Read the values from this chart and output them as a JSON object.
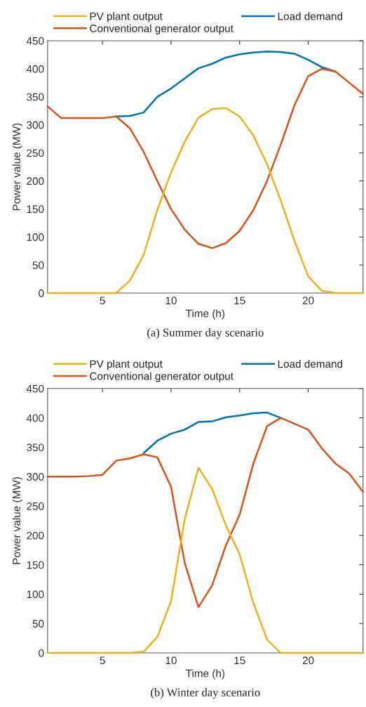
{
  "chart_data": [
    {
      "type": "line",
      "xlabel": "Time (h)",
      "ylabel": "Power value (MW)",
      "annotations": [
        "(a) Summer day scenario"
      ],
      "x": [
        1,
        2,
        3,
        4,
        5,
        6,
        7,
        8,
        9,
        10,
        11,
        12,
        13,
        14,
        15,
        16,
        17,
        18,
        19,
        20,
        21,
        22,
        23,
        24
      ],
      "series": [
        {
          "name": "PV plant output",
          "color": "#edb120",
          "values": [
            0,
            0,
            0,
            0,
            0,
            0,
            22,
            68,
            148,
            215,
            270,
            313,
            328,
            330,
            315,
            281,
            230,
            165,
            93,
            30,
            4,
            0,
            0,
            0
          ]
        },
        {
          "name": "Load demand",
          "color": "#0072bd",
          "values": [
            null,
            null,
            null,
            null,
            null,
            315,
            316,
            322,
            350,
            365,
            383,
            401,
            409,
            420,
            426,
            429,
            431,
            430,
            427,
            416,
            403,
            395,
            null,
            null
          ]
        },
        {
          "name": "Conventional generator output",
          "color": "#d95319",
          "values": [
            333,
            312,
            312,
            312,
            312,
            315,
            294,
            252,
            200,
            150,
            113,
            88,
            80,
            89,
            111,
            148,
            200,
            265,
            335,
            387,
            400,
            395,
            375,
            355
          ]
        }
      ],
      "xlim": [
        1,
        24
      ],
      "xticks": [
        5,
        10,
        15,
        20
      ],
      "ylim": [
        0,
        450
      ],
      "yticks": [
        0,
        50,
        100,
        150,
        200,
        250,
        300,
        350,
        400,
        450
      ],
      "grid": false,
      "legend": "top"
    },
    {
      "type": "line",
      "xlabel": "Time (h)",
      "ylabel": "Power value (MW)",
      "annotations": [
        "(b) Winter day scenario"
      ],
      "x": [
        1,
        2,
        3,
        4,
        5,
        6,
        7,
        8,
        9,
        10,
        11,
        12,
        13,
        14,
        15,
        16,
        17,
        18,
        19,
        20,
        21,
        22,
        23,
        24
      ],
      "series": [
        {
          "name": "PV plant output",
          "color": "#edb120",
          "values": [
            0,
            0,
            0,
            0,
            0,
            0,
            0,
            2,
            27,
            88,
            228,
            315,
            279,
            217,
            168,
            85,
            23,
            0,
            0,
            0,
            0,
            0,
            0,
            0
          ]
        },
        {
          "name": "Load demand",
          "color": "#0072bd",
          "values": [
            null,
            null,
            null,
            null,
            null,
            null,
            null,
            340,
            361,
            373,
            380,
            393,
            394,
            401,
            404,
            408,
            409,
            400,
            null,
            null,
            null,
            null,
            null,
            null
          ]
        },
        {
          "name": "Conventional generator output",
          "color": "#d95319",
          "values": [
            300,
            300,
            300,
            301,
            303,
            327,
            331,
            338,
            333,
            283,
            153,
            78,
            115,
            183,
            235,
            322,
            386,
            400,
            390,
            380,
            348,
            322,
            305,
            274
          ]
        }
      ],
      "xlim": [
        1,
        24
      ],
      "xticks": [
        5,
        10,
        15,
        20
      ],
      "ylim": [
        0,
        450
      ],
      "yticks": [
        0,
        50,
        100,
        150,
        200,
        250,
        300,
        350,
        400,
        450
      ],
      "grid": false,
      "legend": "top"
    }
  ]
}
